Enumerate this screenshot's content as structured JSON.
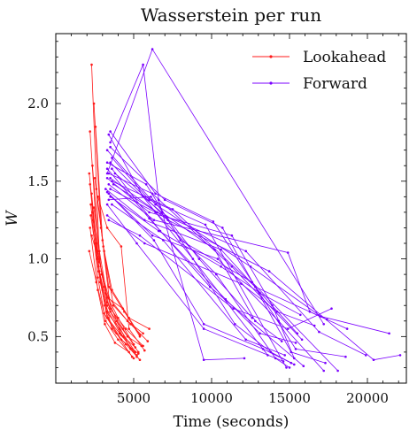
{
  "chart_data": {
    "type": "line",
    "title": "Wasserstein per run",
    "xlabel": "Time (seconds)",
    "ylabel": "W",
    "xlim": [
      0,
      22500
    ],
    "ylim": [
      0.2,
      2.45
    ],
    "xticks": [
      5000,
      10000,
      15000,
      20000
    ],
    "xtick_labels": [
      "5000",
      "10000",
      "15000",
      "20000"
    ],
    "yticks": [
      0.5,
      1.0,
      1.5,
      2.0
    ],
    "ytick_labels": [
      "0.5",
      "1.0",
      "1.5",
      "2.0"
    ],
    "legend_position": "top-right",
    "grid": false,
    "series": [
      {
        "name": "Lookahead",
        "color": "#ff1a1a",
        "runs": [
          [
            [
              2300,
              2.25
            ],
            [
              2800,
              1.0
            ],
            [
              3300,
              0.72
            ],
            [
              4300,
              0.55
            ],
            [
              5300,
              0.4
            ]
          ],
          [
            [
              2200,
              1.82
            ],
            [
              2700,
              1.05
            ],
            [
              3200,
              0.78
            ],
            [
              4000,
              0.62
            ],
            [
              5000,
              0.45
            ]
          ],
          [
            [
              2450,
              2.0
            ],
            [
              2900,
              1.2
            ],
            [
              3400,
              0.82
            ],
            [
              4400,
              0.66
            ],
            [
              5400,
              0.5
            ]
          ],
          [
            [
              2550,
              1.85
            ],
            [
              3000,
              1.12
            ],
            [
              3500,
              0.68
            ],
            [
              4500,
              0.55
            ],
            [
              5600,
              0.44
            ]
          ],
          [
            [
              2150,
              1.55
            ],
            [
              2600,
              1.1
            ],
            [
              3100,
              0.82
            ],
            [
              3900,
              0.6
            ],
            [
              4800,
              0.42
            ]
          ],
          [
            [
              2200,
              1.48
            ],
            [
              2650,
              1.0
            ],
            [
              3150,
              0.7
            ],
            [
              4200,
              0.51
            ],
            [
              5200,
              0.38
            ]
          ],
          [
            [
              2300,
              1.42
            ],
            [
              2750,
              0.95
            ],
            [
              3250,
              0.66
            ],
            [
              4100,
              0.55
            ],
            [
              5100,
              0.4
            ]
          ],
          [
            [
              2250,
              1.35
            ],
            [
              2700,
              0.88
            ],
            [
              3200,
              0.6
            ],
            [
              4000,
              0.48
            ],
            [
              5000,
              0.36
            ]
          ],
          [
            [
              2350,
              1.3
            ],
            [
              2800,
              0.92
            ],
            [
              3300,
              0.7
            ],
            [
              4300,
              0.5
            ],
            [
              5200,
              0.37
            ]
          ],
          [
            [
              2400,
              1.25
            ],
            [
              2850,
              0.85
            ],
            [
              3350,
              0.62
            ],
            [
              4200,
              0.48
            ],
            [
              5300,
              0.39
            ]
          ],
          [
            [
              2200,
              1.2
            ],
            [
              2700,
              0.8
            ],
            [
              3150,
              0.58
            ],
            [
              3800,
              0.46
            ],
            [
              4700,
              0.4
            ]
          ],
          [
            [
              2300,
              1.15
            ],
            [
              2800,
              0.98
            ],
            [
              3400,
              0.75
            ],
            [
              4600,
              0.6
            ],
            [
              5600,
              0.52
            ]
          ],
          [
            [
              2450,
              1.33
            ],
            [
              2950,
              0.9
            ],
            [
              3500,
              0.66
            ],
            [
              4600,
              0.5
            ],
            [
              5500,
              0.44
            ]
          ],
          [
            [
              2500,
              1.1
            ],
            [
              3000,
              0.8
            ],
            [
              3600,
              0.55
            ],
            [
              4500,
              0.45
            ],
            [
              5400,
              0.35
            ]
          ],
          [
            [
              2600,
              1.45
            ],
            [
              3100,
              1.05
            ],
            [
              3700,
              0.7
            ],
            [
              4800,
              0.58
            ],
            [
              5900,
              0.47
            ]
          ],
          [
            [
              2150,
              1.05
            ],
            [
              2600,
              0.85
            ],
            [
              3100,
              0.65
            ],
            [
              3900,
              0.52
            ],
            [
              4900,
              0.37
            ]
          ],
          [
            [
              2700,
              1.4
            ],
            [
              3300,
              1.2
            ],
            [
              4200,
              1.08
            ],
            [
              4700,
              0.55
            ],
            [
              5700,
              0.41
            ]
          ],
          [
            [
              2350,
              1.6
            ],
            [
              2800,
              1.05
            ],
            [
              3300,
              0.75
            ],
            [
              4300,
              0.68
            ],
            [
              5400,
              0.51
            ]
          ],
          [
            [
              2500,
              1.52
            ],
            [
              3050,
              1.08
            ],
            [
              3600,
              0.8
            ],
            [
              4700,
              0.62
            ],
            [
              6000,
              0.55
            ]
          ],
          [
            [
              2250,
              1.28
            ],
            [
              2750,
              0.92
            ],
            [
              3300,
              0.62
            ],
            [
              4100,
              0.52
            ],
            [
              5100,
              0.43
            ]
          ]
        ]
      },
      {
        "name": "Forward",
        "color": "#7b00ff",
        "runs": [
          [
            [
              3300,
              1.55
            ],
            [
              6200,
              2.35
            ],
            [
              17200,
              0.58
            ]
          ],
          [
            [
              3500,
              1.75
            ],
            [
              5600,
              2.25
            ],
            [
              6600,
              1.38
            ],
            [
              9500,
              0.35
            ],
            [
              12100,
              0.36
            ]
          ],
          [
            [
              3400,
              1.8
            ],
            [
              5600,
              1.4
            ],
            [
              8800,
              1.0
            ],
            [
              13600,
              0.38
            ]
          ],
          [
            [
              3600,
              1.65
            ],
            [
              6000,
              1.38
            ],
            [
              9600,
              1.22
            ],
            [
              14800,
              0.3
            ]
          ],
          [
            [
              3200,
              1.45
            ],
            [
              5700,
              1.25
            ],
            [
              10600,
              1.06
            ],
            [
              15500,
              0.52
            ]
          ],
          [
            [
              3300,
              1.35
            ],
            [
              5200,
              1.1
            ],
            [
              9500,
              0.55
            ],
            [
              14600,
              0.34
            ]
          ],
          [
            [
              3400,
              1.55
            ],
            [
              6200,
              1.42
            ],
            [
              11300,
              0.95
            ],
            [
              15800,
              0.48
            ]
          ],
          [
            [
              3300,
              1.62
            ],
            [
              5800,
              1.48
            ],
            [
              8000,
              1.12
            ],
            [
              12600,
              0.85
            ],
            [
              18100,
              0.28
            ]
          ],
          [
            [
              3500,
              1.45
            ],
            [
              6400,
              1.3
            ],
            [
              10300,
              0.9
            ],
            [
              14100,
              0.36
            ],
            [
              15000,
              0.3
            ]
          ],
          [
            [
              3300,
              1.58
            ],
            [
              6000,
              1.26
            ],
            [
              9900,
              0.82
            ],
            [
              15900,
              0.31
            ]
          ],
          [
            [
              3600,
              1.58
            ],
            [
              6700,
              1.18
            ],
            [
              10900,
              0.74
            ],
            [
              13100,
              0.52
            ],
            [
              15400,
              0.46
            ]
          ],
          [
            [
              3400,
              1.42
            ],
            [
              6200,
              1.15
            ],
            [
              10400,
              1.0
            ],
            [
              14300,
              0.6
            ],
            [
              17200,
              0.28
            ]
          ],
          [
            [
              3500,
              1.72
            ],
            [
              7000,
              1.38
            ],
            [
              10700,
              1.2
            ],
            [
              15100,
              0.4
            ],
            [
              17300,
              0.33
            ]
          ],
          [
            [
              3700,
              1.48
            ],
            [
              6500,
              1.3
            ],
            [
              12200,
              1.05
            ],
            [
              16900,
              0.53
            ],
            [
              19900,
              0.38
            ]
          ],
          [
            [
              3300,
              1.28
            ],
            [
              5700,
              1.1
            ],
            [
              11900,
              0.84
            ],
            [
              14200,
              0.66
            ],
            [
              16600,
              0.57
            ]
          ],
          [
            [
              3400,
              1.38
            ],
            [
              6100,
              1.4
            ],
            [
              9200,
              1.0
            ],
            [
              12600,
              0.62
            ]
          ],
          [
            [
              3500,
              1.52
            ],
            [
              7200,
              1.25
            ],
            [
              11500,
              0.58
            ],
            [
              13800,
              0.4
            ],
            [
              15300,
              0.32
            ]
          ],
          [
            [
              3800,
              1.55
            ],
            [
              6800,
              1.3
            ],
            [
              10200,
              1.06
            ],
            [
              12800,
              0.6
            ],
            [
              14500,
              0.47
            ]
          ],
          [
            [
              3300,
              1.7
            ],
            [
              6400,
              1.35
            ],
            [
              12500,
              0.95
            ],
            [
              17000,
              0.63
            ],
            [
              21400,
              0.52
            ]
          ],
          [
            [
              3400,
              1.25
            ],
            [
              5400,
              1.15
            ],
            [
              11400,
              0.68
            ],
            [
              14900,
              0.55
            ],
            [
              17700,
              0.68
            ]
          ],
          [
            [
              3600,
              1.5
            ],
            [
              7500,
              1.32
            ],
            [
              12800,
              0.82
            ],
            [
              18700,
              0.55
            ]
          ],
          [
            [
              3500,
              1.82
            ],
            [
              6400,
              1.42
            ],
            [
              10100,
              1.24
            ],
            [
              15400,
              0.42
            ],
            [
              18600,
              0.37
            ]
          ],
          [
            [
              3300,
              1.43
            ],
            [
              6300,
              1.12
            ],
            [
              9500,
              0.58
            ],
            [
              13300,
              0.42
            ],
            [
              15100,
              0.33
            ]
          ],
          [
            [
              3400,
              1.48
            ],
            [
              6300,
              1.25
            ],
            [
              14900,
              1.04
            ],
            [
              16300,
              0.66
            ],
            [
              17400,
              0.61
            ]
          ],
          [
            [
              3500,
              1.62
            ],
            [
              7200,
              1.25
            ],
            [
              13700,
              0.92
            ],
            [
              20400,
              0.35
            ],
            [
              22100,
              0.38
            ]
          ],
          [
            [
              3600,
              1.35
            ],
            [
              6900,
              1.12
            ],
            [
              12200,
              0.48
            ],
            [
              14700,
              0.38
            ]
          ],
          [
            [
              3300,
              1.52
            ],
            [
              6000,
              1.3
            ],
            [
              11300,
              1.15
            ],
            [
              13900,
              0.7
            ],
            [
              15300,
              0.36
            ]
          ],
          [
            [
              3500,
              1.4
            ],
            [
              6600,
              1.18
            ],
            [
              10600,
              0.95
            ],
            [
              13100,
              0.78
            ],
            [
              15700,
              0.64
            ]
          ]
        ]
      }
    ]
  }
}
